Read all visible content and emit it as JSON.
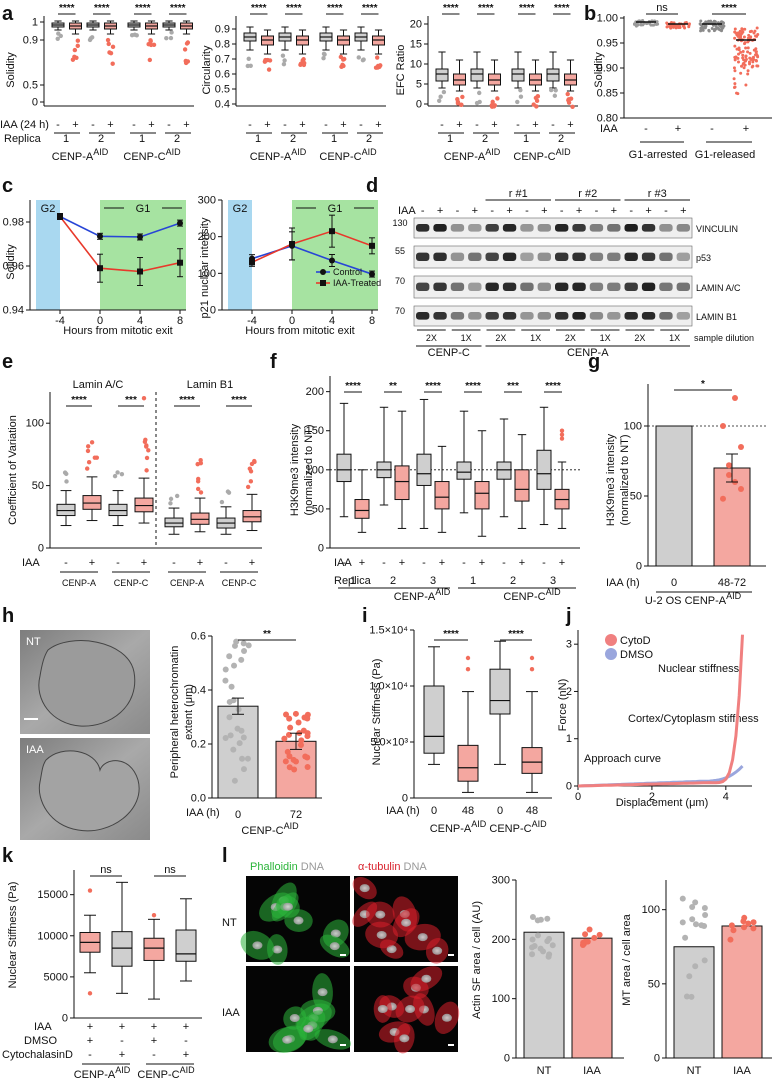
{
  "colors": {
    "control": "#cfcfcf",
    "treated": "#f4a7a0",
    "treated_dark": "#f26d5b",
    "g2": "#a9d8f0",
    "g1": "#a6e3a1",
    "control_line": "#2845d6",
    "treated_line": "#e8392b",
    "micro_green": "#2bb43a",
    "micro_red": "#d81f2a"
  },
  "panels": {
    "a": {
      "label": "a",
      "sol": {
        "ylabel": "Solidity",
        "yt": [
          "0",
          "0.5",
          "0.9",
          "1"
        ],
        "sig": [
          "****",
          "****",
          "****",
          "****"
        ]
      },
      "circ": {
        "ylabel": "Circularity",
        "yt": [
          "0.4",
          "0.5",
          "0.6",
          "0.7",
          "0.8",
          "0.9"
        ],
        "sig": [
          "****",
          "****",
          "****",
          "****"
        ]
      },
      "efc": {
        "ylabel": "EFC Ratio",
        "yt": [
          "0",
          "5",
          "10",
          "15",
          "20"
        ],
        "sig": [
          "****",
          "****",
          "****",
          "****"
        ]
      },
      "iaa_label": "IAA (24 h)",
      "replica_label": "Replica",
      "signs": [
        "-",
        "+",
        "-",
        "+",
        "-",
        "+",
        "-",
        "+"
      ],
      "replicas": [
        "1",
        "2",
        "1",
        "2"
      ],
      "groupA": "CENP-A",
      "groupC": "CENP-C",
      "sup": "AID"
    },
    "b": {
      "label": "b",
      "ylabel": "Solidity",
      "yt": [
        "0.80",
        "0.85",
        "0.90",
        "0.95",
        "1.00"
      ],
      "sig": [
        "ns",
        "****"
      ],
      "iaa": "IAA",
      "signs": [
        "-",
        "+",
        "-",
        "+"
      ],
      "groups": [
        "G1-arrested",
        "G1-released"
      ]
    },
    "c": {
      "label": "c",
      "g2": "G2",
      "g1": "G1",
      "left": {
        "ylabel": "Solidity",
        "yt": [
          "0.94",
          "0.96",
          "0.98"
        ],
        "control": [
          0.9825,
          0.9735,
          0.9732,
          0.9795
        ],
        "treated": [
          0.9825,
          0.959,
          0.9575,
          0.9615
        ]
      },
      "right": {
        "ylabel": "p21 nuclear intensity",
        "yt": [
          "0",
          "100",
          "200",
          "300"
        ],
        "control": [
          140,
          175,
          135,
          98
        ],
        "treated": [
          130,
          180,
          215,
          175
        ]
      },
      "x": [
        -4,
        0,
        4,
        8
      ],
      "xt": [
        "-4",
        "0",
        "4",
        "8"
      ],
      "xlabel": "Hours from mitotic exit",
      "legend": [
        "Control",
        "IAA-Treated"
      ]
    },
    "d": {
      "label": "d",
      "iaa": "IAA",
      "reps": [
        "r #1",
        "r #2",
        "r #3"
      ],
      "signs": [
        "-",
        "+",
        "-",
        "+",
        "-",
        "+",
        "-",
        "+",
        "-",
        "+",
        "-",
        "+",
        "-",
        "+",
        "-",
        "+"
      ],
      "blots": [
        "VINCULIN",
        "p53",
        "LAMIN A/C",
        "LAMIN B1"
      ],
      "mw": [
        "130",
        "55",
        "70",
        "70"
      ],
      "dil": [
        "2X",
        "1X",
        "2X",
        "1X",
        "2X",
        "1X",
        "2X",
        "1X"
      ],
      "dil_label": "sample dilution",
      "groupC": "CENP-C",
      "groupA": "CENP-A",
      "sup": "AID"
    },
    "e": {
      "label": "e",
      "ylabel": "Coefficient of Variation",
      "yt": [
        "0",
        "50",
        "100"
      ],
      "titles": [
        "Lamin A/C",
        "Lamin B1"
      ],
      "sig": [
        "****",
        "***",
        "****",
        "****"
      ],
      "iaa": "IAA",
      "signs": [
        "-",
        "+",
        "-",
        "+",
        "-",
        "+",
        "-",
        "+"
      ],
      "groups": [
        "CENP-A",
        "CENP-C",
        "CENP-A",
        "CENP-C"
      ],
      "sup": "AID"
    },
    "f": {
      "label": "f",
      "ylabel": "H3K9me3 intensity",
      "ylabel2": "(normalized to NT)",
      "yt": [
        "0",
        "50",
        "100",
        "150",
        "200"
      ],
      "sig": [
        "****",
        "**",
        "****",
        "****",
        "***",
        "****"
      ],
      "iaa": "IAA",
      "replica": "Replica",
      "signs": [
        "-",
        "+",
        "-",
        "+",
        "-",
        "+",
        "-",
        "+",
        "-",
        "+",
        "-",
        "+"
      ],
      "reps": [
        "1",
        "2",
        "3",
        "1",
        "2",
        "3"
      ],
      "groups": [
        "CENP-A",
        "CENP-C"
      ],
      "sup": "AID"
    },
    "g": {
      "label": "g",
      "ylabel": "H3K9me3 intensity",
      "ylabel2": "(normalized to NT)",
      "yt": [
        "0",
        "50",
        "100"
      ],
      "sig": "*",
      "iaa": "IAA (h)",
      "xt": [
        "0",
        "48-72"
      ],
      "values": [
        100,
        70
      ],
      "caption": "U-2 OS CENP-A",
      "sup": "AID"
    },
    "h": {
      "label": "h",
      "nt": "NT",
      "iaa_img": "IAA",
      "ylabel": "Peripheral heterochromatin",
      "ylabel2": "extent (μm)",
      "yt": [
        "0.0",
        "0.2",
        "0.4",
        "0.6"
      ],
      "sig": "**",
      "iaa": "IAA (h)",
      "xt": [
        "0",
        "72"
      ],
      "values": [
        0.34,
        0.21
      ],
      "caption": "CENP-C",
      "sup": "AID"
    },
    "i": {
      "label": "i",
      "ylabel": "Nuclear Stiffness (Pa)",
      "yt": [
        "0",
        "5.0×10³",
        "1.0×10⁴",
        "1.5×10⁴"
      ],
      "sig": [
        "****",
        "****"
      ],
      "iaa": "IAA (h)",
      "xt": [
        "0",
        "48",
        "0",
        "48"
      ],
      "groups": [
        "CENP-A",
        "CENP-C"
      ],
      "sup": "AID"
    },
    "j": {
      "label": "j",
      "legend": [
        "CytoD",
        "DMSO"
      ],
      "ylabel": "Force (nN)",
      "xlabel": "Displacement (μm)",
      "xt": [
        "0",
        "2",
        "4"
      ],
      "yt": [
        "0",
        "1",
        "2",
        "3"
      ],
      "annotations": [
        "Nuclear stiffness",
        "Cortex/Cytoplasm stiffness",
        "Approach curve"
      ]
    },
    "k": {
      "label": "k",
      "ylabel": "Nuclear Stiffness  (Pa)",
      "yt": [
        "0",
        "5000",
        "10000",
        "15000"
      ],
      "sig": [
        "ns",
        "ns"
      ],
      "rows": [
        "IAA",
        "DMSO",
        "CytochalasinD"
      ],
      "row_iaa": [
        "+",
        "+",
        "+",
        "+"
      ],
      "row_dmso": [
        "+",
        "-",
        "+",
        "-"
      ],
      "row_cyto": [
        "-",
        "+",
        "-",
        "+"
      ],
      "groups": [
        "CENP-A",
        "CENP-C"
      ],
      "sup": "AID"
    },
    "l": {
      "label": "l",
      "stain1a": "Phalloidin",
      "stain1b": "DNA",
      "stain2a": "α-tubulin",
      "stain2b": "DNA",
      "rows": [
        "NT",
        "IAA"
      ],
      "bar1": {
        "ylabel": "Actin SF area / cell (AU)",
        "yt": [
          "0",
          "100",
          "200",
          "300"
        ],
        "xt": [
          "NT",
          "IAA"
        ],
        "values": [
          212,
          202
        ]
      },
      "bar2": {
        "ylabel": "MT area / cell area",
        "yt": [
          "0",
          "50",
          "100"
        ],
        "xt": [
          "NT",
          "IAA"
        ],
        "values": [
          75,
          89
        ]
      }
    }
  }
}
